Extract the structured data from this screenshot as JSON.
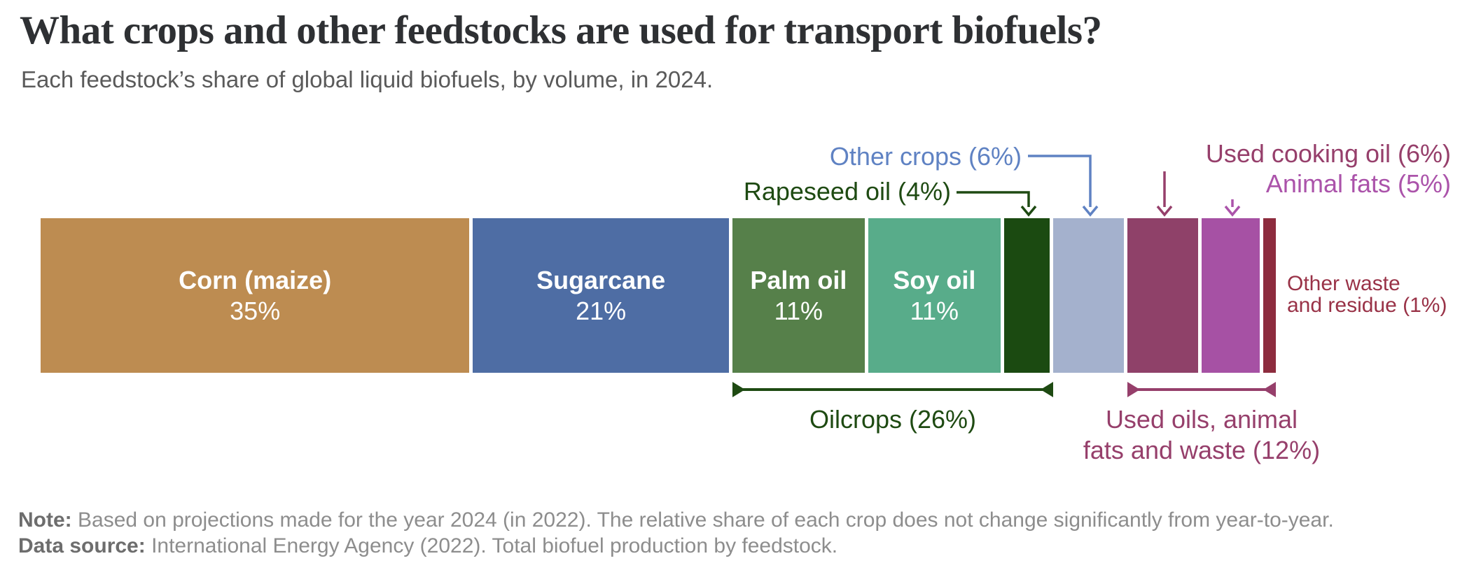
{
  "chart_data": {
    "type": "bar",
    "orientation": "horizontal-stacked",
    "title": "What crops and other feedstocks are used for transport biofuels?",
    "subtitle": "Each feedstock’s share of global liquid biofuels, by volume, in 2024.",
    "unit": "%",
    "xlim": [
      0,
      100
    ],
    "segments": [
      {
        "name": "Corn (maize)",
        "value": 35,
        "color": "#bd8c51",
        "label_inside": true
      },
      {
        "name": "Sugarcane",
        "value": 21,
        "color": "#4e6da4",
        "label_inside": true
      },
      {
        "name": "Palm oil",
        "value": 11,
        "color": "#56804a",
        "label_inside": true
      },
      {
        "name": "Soy oil",
        "value": 11,
        "color": "#58ac8a",
        "label_inside": true
      },
      {
        "name": "Rapeseed oil",
        "value": 4,
        "color": "#1b4a11",
        "label_inside": false
      },
      {
        "name": "Other crops",
        "value": 6,
        "color": "#a4b1cd",
        "label_inside": false
      },
      {
        "name": "Used cooking oil",
        "value": 6,
        "color": "#8f4169",
        "label_inside": false
      },
      {
        "name": "Animal fats",
        "value": 5,
        "color": "#a651a4",
        "label_inside": false
      },
      {
        "name": "Other waste and residue",
        "value": 1,
        "color": "#8d2c3e",
        "label_inside": false
      }
    ],
    "groups": [
      {
        "label": "Oilcrops (26%)",
        "members": [
          "Palm oil",
          "Soy oil",
          "Rapeseed oil"
        ],
        "value": 26,
        "color": "#1e4a12"
      },
      {
        "label": "Used oils, animal fats and waste (12%)",
        "members": [
          "Used cooking oil",
          "Animal fats",
          "Other waste and residue"
        ],
        "value": 12,
        "color": "#963f6b"
      }
    ],
    "callouts": {
      "other_crops": "Other crops (6%)",
      "rapeseed_oil": "Rapeseed oil (4%)",
      "used_cooking_oil": "Used cooking oil (6%)",
      "animal_fats": "Animal fats (5%)",
      "other_waste_line1": "Other waste",
      "other_waste_line2": "and residue (1%)",
      "oilcrops_group": "Oilcrops (26%)",
      "used_oils_group_line1": "Used oils, animal",
      "used_oils_group_line2": "fats and waste (12%)"
    },
    "colors": {
      "title_text": "#2e3033",
      "subtitle_text": "#5a5a5a",
      "other_crops_label": "#5f82c3",
      "rapeseed_label": "#1e4a12",
      "used_cooking_label": "#963f6b",
      "animal_fats_label": "#ab53aa",
      "other_waste_label": "#993247",
      "footer_text": "#8d8d8d"
    }
  },
  "footer": {
    "note_label": "Note:",
    "note_text": "Based on projections made for the year 2024 (in 2022). The relative share of each crop does not change significantly from year-to-year.",
    "source_label": "Data source:",
    "source_text": "International Energy Agency (2022). Total biofuel production by feedstock."
  }
}
